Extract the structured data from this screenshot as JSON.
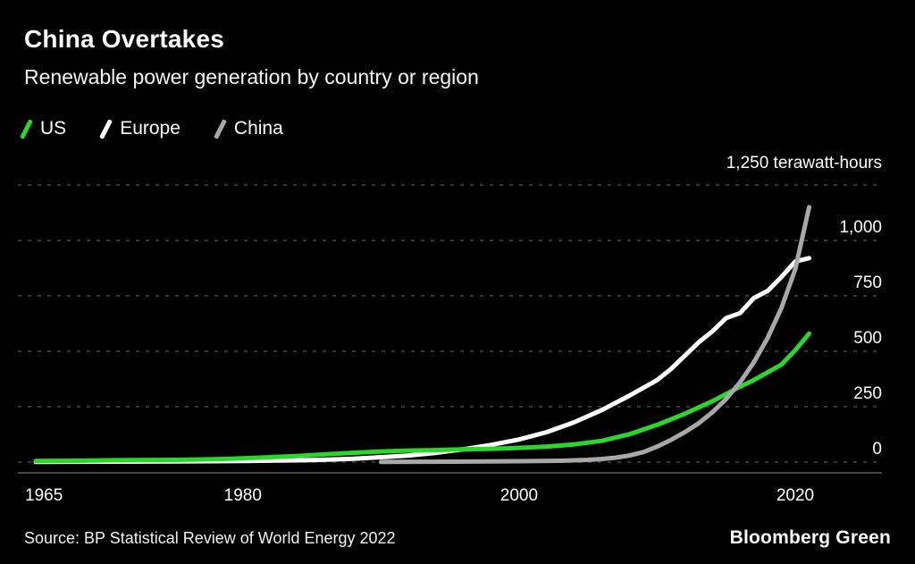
{
  "header": {
    "title": "China Overtakes",
    "subtitle": "Renewable power generation by country or region"
  },
  "legend": [
    {
      "label": "US",
      "color": "#2dd62d"
    },
    {
      "label": "Europe",
      "color": "#ffffff"
    },
    {
      "label": "China",
      "color": "#a8a8a8"
    }
  ],
  "footer": {
    "source": "Source: BP Statistical Review of World Energy 2022",
    "brand": "Bloomberg Green"
  },
  "chart_data": {
    "type": "line",
    "title": "China Overtakes",
    "subtitle": "Renewable power generation by country or region",
    "unit_label": "1,250 terawatt-hours",
    "ylabel": "terawatt-hours",
    "ylim": [
      0,
      1250
    ],
    "xlim": [
      1965,
      2021
    ],
    "grid": "dashed-horizontal",
    "legend_position": "top-left",
    "background": "#000000",
    "gridlines": [
      0,
      250,
      500,
      750,
      1000,
      1250
    ],
    "yticks": [
      0,
      250,
      500,
      750,
      1000
    ],
    "ytick_labels": [
      "0",
      "250",
      "500",
      "750",
      "1,000"
    ],
    "xticks": [
      1965,
      1980,
      2000,
      2020
    ],
    "xtick_labels": [
      "1965",
      "1980",
      "2000",
      "2020"
    ],
    "series": [
      {
        "name": "Europe",
        "color": "#ffffff",
        "points": [
          [
            1965,
            1
          ],
          [
            1970,
            2
          ],
          [
            1975,
            3
          ],
          [
            1980,
            5
          ],
          [
            1985,
            9
          ],
          [
            1988,
            15
          ],
          [
            1990,
            22
          ],
          [
            1992,
            30
          ],
          [
            1994,
            42
          ],
          [
            1996,
            58
          ],
          [
            1998,
            78
          ],
          [
            2000,
            102
          ],
          [
            2002,
            135
          ],
          [
            2004,
            180
          ],
          [
            2006,
            235
          ],
          [
            2008,
            300
          ],
          [
            2010,
            370
          ],
          [
            2011,
            420
          ],
          [
            2012,
            480
          ],
          [
            2013,
            540
          ],
          [
            2014,
            590
          ],
          [
            2015,
            650
          ],
          [
            2016,
            672
          ],
          [
            2017,
            740
          ],
          [
            2018,
            772
          ],
          [
            2019,
            835
          ],
          [
            2020,
            905
          ],
          [
            2021,
            920
          ]
        ]
      },
      {
        "name": "US",
        "color": "#2dd62d",
        "points": [
          [
            1965,
            5
          ],
          [
            1968,
            6
          ],
          [
            1970,
            8
          ],
          [
            1972,
            9
          ],
          [
            1975,
            10
          ],
          [
            1978,
            13
          ],
          [
            1980,
            17
          ],
          [
            1982,
            22
          ],
          [
            1984,
            28
          ],
          [
            1986,
            35
          ],
          [
            1988,
            42
          ],
          [
            1990,
            48
          ],
          [
            1992,
            52
          ],
          [
            1994,
            54
          ],
          [
            1996,
            58
          ],
          [
            1998,
            60
          ],
          [
            2000,
            64
          ],
          [
            2002,
            70
          ],
          [
            2004,
            80
          ],
          [
            2006,
            96
          ],
          [
            2008,
            126
          ],
          [
            2010,
            168
          ],
          [
            2012,
            218
          ],
          [
            2014,
            275
          ],
          [
            2016,
            340
          ],
          [
            2017,
            370
          ],
          [
            2018,
            405
          ],
          [
            2019,
            440
          ],
          [
            2020,
            505
          ],
          [
            2021,
            580
          ]
        ]
      },
      {
        "name": "China",
        "color": "#a8a8a8",
        "points": [
          [
            1990,
            1
          ],
          [
            1995,
            2
          ],
          [
            2000,
            4
          ],
          [
            2003,
            6
          ],
          [
            2005,
            10
          ],
          [
            2006,
            14
          ],
          [
            2007,
            20
          ],
          [
            2008,
            30
          ],
          [
            2009,
            45
          ],
          [
            2010,
            70
          ],
          [
            2011,
            100
          ],
          [
            2012,
            135
          ],
          [
            2013,
            175
          ],
          [
            2014,
            225
          ],
          [
            2015,
            285
          ],
          [
            2016,
            360
          ],
          [
            2017,
            450
          ],
          [
            2018,
            560
          ],
          [
            2019,
            695
          ],
          [
            2020,
            870
          ],
          [
            2021,
            1150
          ]
        ]
      }
    ]
  }
}
